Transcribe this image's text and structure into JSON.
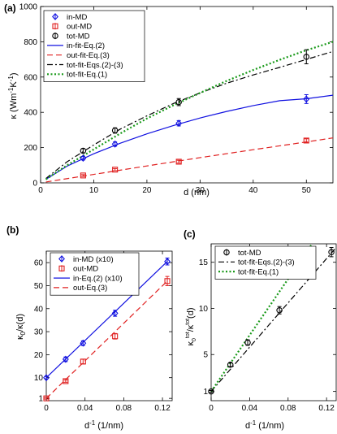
{
  "chart_data": [
    {
      "panel": "(a)",
      "type": "line",
      "xlabel": "d (nm)",
      "ylabel": "κ (Wm⁻¹K⁻¹)",
      "xlim": [
        0,
        55
      ],
      "ylim": [
        0,
        1000
      ],
      "xticks": [
        0,
        10,
        20,
        30,
        40,
        50
      ],
      "yticks": [
        0,
        200,
        400,
        600,
        800,
        1000
      ],
      "legend_position": "top-left",
      "series": [
        {
          "name": "in-MD",
          "kind": "points",
          "marker": "diamond",
          "color": "#1010e0",
          "x": [
            8,
            14,
            26,
            50
          ],
          "y": [
            140,
            220,
            338,
            475
          ],
          "err": [
            10,
            12,
            15,
            25
          ]
        },
        {
          "name": "out-MD",
          "kind": "points",
          "marker": "square",
          "color": "#e02020",
          "x": [
            8,
            14,
            26,
            50
          ],
          "y": [
            42,
            75,
            120,
            240
          ],
          "err": [
            5,
            6,
            8,
            10
          ]
        },
        {
          "name": "tot-MD",
          "kind": "points",
          "marker": "circle",
          "color": "#000000",
          "x": [
            8,
            14,
            26,
            50
          ],
          "y": [
            182,
            297,
            458,
            715
          ],
          "err": [
            12,
            15,
            20,
            40
          ]
        },
        {
          "name": "in-fit-Eq.(2)",
          "kind": "line",
          "dash": "solid",
          "color": "#1010e0",
          "x": [
            1,
            5,
            10,
            15,
            20,
            25,
            30,
            35,
            40,
            45,
            50,
            55
          ],
          "y": [
            20,
            95,
            165,
            225,
            278,
            325,
            368,
            405,
            438,
            466,
            477,
            497
          ]
        },
        {
          "name": "out-fit-Eq.(3)",
          "kind": "line",
          "dash": "dashed",
          "color": "#e02020",
          "x": [
            1,
            10,
            20,
            30,
            40,
            50,
            55
          ],
          "y": [
            5,
            48,
            96,
            143,
            188,
            232,
            255
          ]
        },
        {
          "name": "tot-fit-Eqs.(2)-(3)",
          "kind": "line",
          "dash": "dashdot",
          "color": "#000000",
          "x": [
            1,
            5,
            10,
            15,
            20,
            25,
            30,
            35,
            40,
            45,
            50,
            55
          ],
          "y": [
            25,
            120,
            215,
            305,
            380,
            450,
            510,
            565,
            612,
            655,
            700,
            745
          ]
        },
        {
          "name": "tot-fit-Eq.(1)",
          "kind": "line",
          "dash": "dotted",
          "color": "#1a9a1a",
          "x": [
            1,
            5,
            10,
            15,
            20,
            25,
            30,
            35,
            40,
            45,
            50,
            55
          ],
          "y": [
            20,
            100,
            190,
            280,
            365,
            440,
            510,
            578,
            640,
            698,
            752,
            800
          ]
        }
      ]
    },
    {
      "panel": "(b)",
      "type": "line",
      "xlabel": "d⁻¹ (1/nm)",
      "ylabel": "κ₀/κ(d)",
      "xlim": [
        0,
        0.13
      ],
      "ylim": [
        0,
        65
      ],
      "xticks": [
        0,
        0.04,
        0.08,
        0.12
      ],
      "xtick_labels": [
        "0",
        "0.04",
        "0.08",
        "0.12"
      ],
      "yticks": [
        1,
        10,
        20,
        30,
        40,
        50,
        60
      ],
      "legend_position": "top-left",
      "series": [
        {
          "name": "in-MD (x10)",
          "kind": "points",
          "marker": "diamond",
          "color": "#1010e0",
          "x": [
            0,
            0.02,
            0.038,
            0.071,
            0.125
          ],
          "y": [
            10,
            18,
            25,
            38,
            60.5
          ],
          "err": [
            0.5,
            1,
            1,
            1.3,
            1.5
          ]
        },
        {
          "name": "out-MD",
          "kind": "points",
          "marker": "square",
          "color": "#e02020",
          "x": [
            0,
            0.02,
            0.038,
            0.071,
            0.125
          ],
          "y": [
            1,
            8.5,
            17,
            28,
            52
          ],
          "err": [
            0.3,
            0.5,
            1,
            1.2,
            2
          ]
        },
        {
          "name": "in-Eq.(2) (x10)",
          "kind": "line",
          "dash": "solid",
          "color": "#1010e0",
          "x": [
            0,
            0.125
          ],
          "y": [
            10,
            60.5
          ]
        },
        {
          "name": "out-Eq.(3)",
          "kind": "line",
          "dash": "dashed",
          "color": "#e02020",
          "x": [
            0,
            0.125
          ],
          "y": [
            1,
            52
          ]
        }
      ]
    },
    {
      "panel": "(c)",
      "type": "line",
      "xlabel": "d⁻¹ (1/nm)",
      "ylabel": "κ₀tot/κtot(d)",
      "xlim": [
        0,
        0.13
      ],
      "ylim": [
        0,
        17
      ],
      "xticks": [
        0,
        0.04,
        0.08,
        0.12
      ],
      "xtick_labels": [
        "0",
        "0.04",
        "0.08",
        "0.12"
      ],
      "yticks": [
        1,
        5,
        10,
        15
      ],
      "legend_position": "top-left",
      "series": [
        {
          "name": "tot-MD",
          "kind": "points",
          "marker": "circle",
          "color": "#000000",
          "x": [
            0,
            0.02,
            0.038,
            0.071,
            0.125
          ],
          "y": [
            1,
            3.9,
            6.3,
            9.8,
            16.1
          ],
          "err": [
            0.1,
            0.2,
            0.3,
            0.4,
            0.5
          ]
        },
        {
          "name": "tot-fit-Eqs.(2)-(3)",
          "kind": "line",
          "dash": "dashdot",
          "color": "#000000",
          "x": [
            0,
            0.13
          ],
          "y": [
            1,
            16.6
          ]
        },
        {
          "name": "tot-fit-Eq.(1)",
          "kind": "line",
          "dash": "dotted",
          "color": "#1a9a1a",
          "x": [
            0,
            0.105
          ],
          "y": [
            1,
            17
          ]
        }
      ]
    }
  ],
  "ylabel_parts": {
    "a": {
      "sym": "κ",
      "unit": " (Wm",
      "exp1": "-1",
      "mid": "K",
      "exp2": "-1",
      "close": ")"
    },
    "b": {
      "num": "κ",
      "numsub": "0",
      "slash": "/κ(d)"
    },
    "c": {
      "num": "κ",
      "numsub": "0",
      "numsup": "tot",
      "slash": "/κ",
      "densup": "tot",
      "tail": "(d)"
    },
    "x_bc": {
      "base": "d",
      "sup": "-1",
      "unit": " (1/nm)"
    }
  }
}
